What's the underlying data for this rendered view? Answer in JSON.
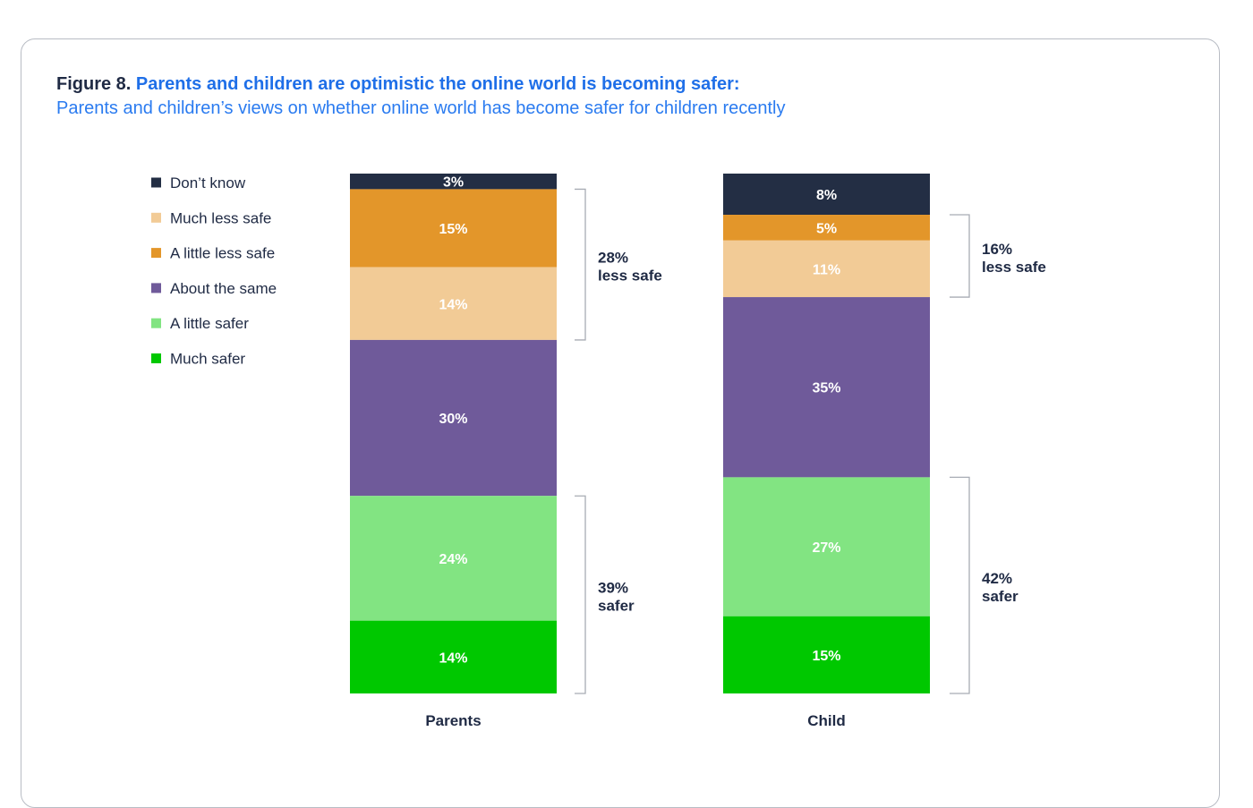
{
  "header": {
    "figure_label": "Figure 8.",
    "title": "Parents and children are optimistic the online world is becoming safer:",
    "subtitle": "Parents and children’s views on whether online world has become safer for children recently"
  },
  "chart_data": {
    "type": "bar",
    "stacked": true,
    "percent_scale": true,
    "legend_position": "top-left",
    "categories": [
      "Parents",
      "Child"
    ],
    "series": [
      {
        "name": "Much safer",
        "color": "#00c800",
        "values": [
          14,
          15
        ],
        "labels": [
          "14%",
          "15%"
        ]
      },
      {
        "name": "A little safer",
        "color": "#82e482",
        "values": [
          24,
          27
        ],
        "labels": [
          "24%",
          "27%"
        ]
      },
      {
        "name": "About the same",
        "color": "#6f5a9a",
        "values": [
          30,
          35
        ],
        "labels": [
          "30%",
          "35%"
        ]
      },
      {
        "name": "A little less safe",
        "color": "#e3962a",
        "values": [
          15,
          5
        ],
        "labels": [
          "15%",
          "5%"
        ]
      },
      {
        "name": "Much less safe",
        "color": "#f2cb96",
        "values": [
          14,
          11
        ],
        "labels": [
          "14%",
          "11%"
        ]
      },
      {
        "name": "Don’t know",
        "color": "#232e44",
        "values": [
          3,
          8
        ],
        "labels": [
          "3%",
          "8%"
        ]
      }
    ],
    "segment_order_top_to_bottom": [
      [
        "Don’t know",
        "A little less safe",
        "Much less safe",
        "About the same",
        "A little safer",
        "Much safer"
      ],
      [
        "Don’t know",
        "A little less safe",
        "Much less safe",
        "About the same",
        "A little safer",
        "Much safer"
      ]
    ],
    "legend_order": [
      "Don’t know",
      "Much less safe",
      "A little less safe",
      "About the same",
      "A little safer",
      "Much safer"
    ],
    "brackets": [
      [
        {
          "value": "28%",
          "text": "less safe",
          "from": "A little less safe",
          "to": "Much less safe"
        },
        {
          "value": "39%",
          "text": "safer",
          "from": "A little safer",
          "to": "Much safer"
        }
      ],
      [
        {
          "value": "16%",
          "text": "less safe",
          "from": "A little less safe",
          "to": "Much less safe"
        },
        {
          "value": "42%",
          "text": "safer",
          "from": "A little safer",
          "to": "Much safer"
        }
      ]
    ],
    "colors": {
      "axis_text": "#1f2a44",
      "segment_label": "#ffffff",
      "bracket": "#a8acb4"
    }
  }
}
